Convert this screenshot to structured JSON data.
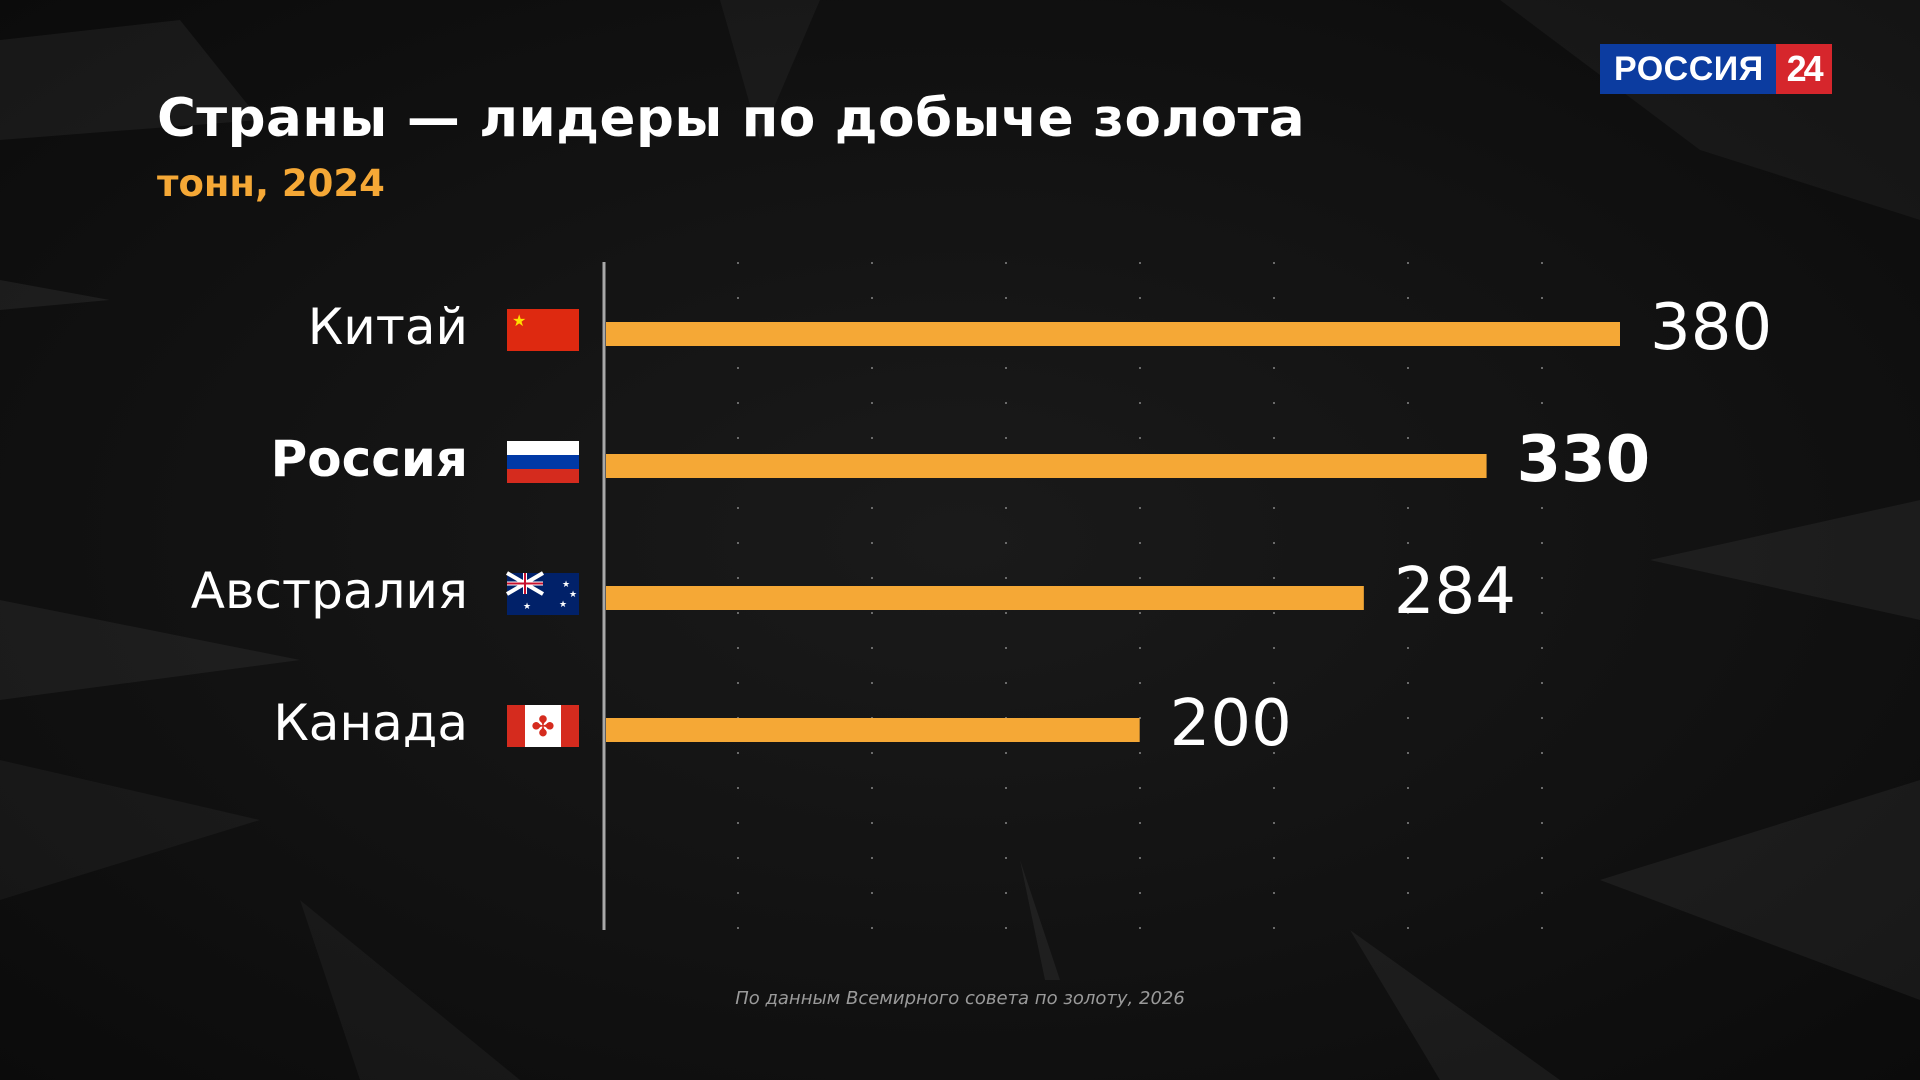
{
  "header": {
    "title": "Страны — лидеры по добыче золота",
    "subtitle": "тонн, 2024"
  },
  "logo": {
    "text": "РОССИЯ",
    "number": "24",
    "colors": {
      "blue": "#0c3ca0",
      "red": "#d6262c"
    }
  },
  "footer": {
    "source": "По данным Всемирного совета по золоту, 2026"
  },
  "chart_data": {
    "type": "bar",
    "orientation": "horizontal",
    "categories": [
      "Китай",
      "Россия",
      "Австралия",
      "Канада"
    ],
    "values": [
      380,
      330,
      284,
      200
    ],
    "value_labels": [
      "380",
      "330",
      "284",
      "200"
    ],
    "flags": [
      "flag-china-icon",
      "flag-russia-icon",
      "flag-australia-icon",
      "flag-canada-icon"
    ],
    "highlight": "Россия",
    "xlim": [
      0,
      400
    ],
    "grid": "dotted vertical",
    "bar_color": "#f5a836"
  }
}
